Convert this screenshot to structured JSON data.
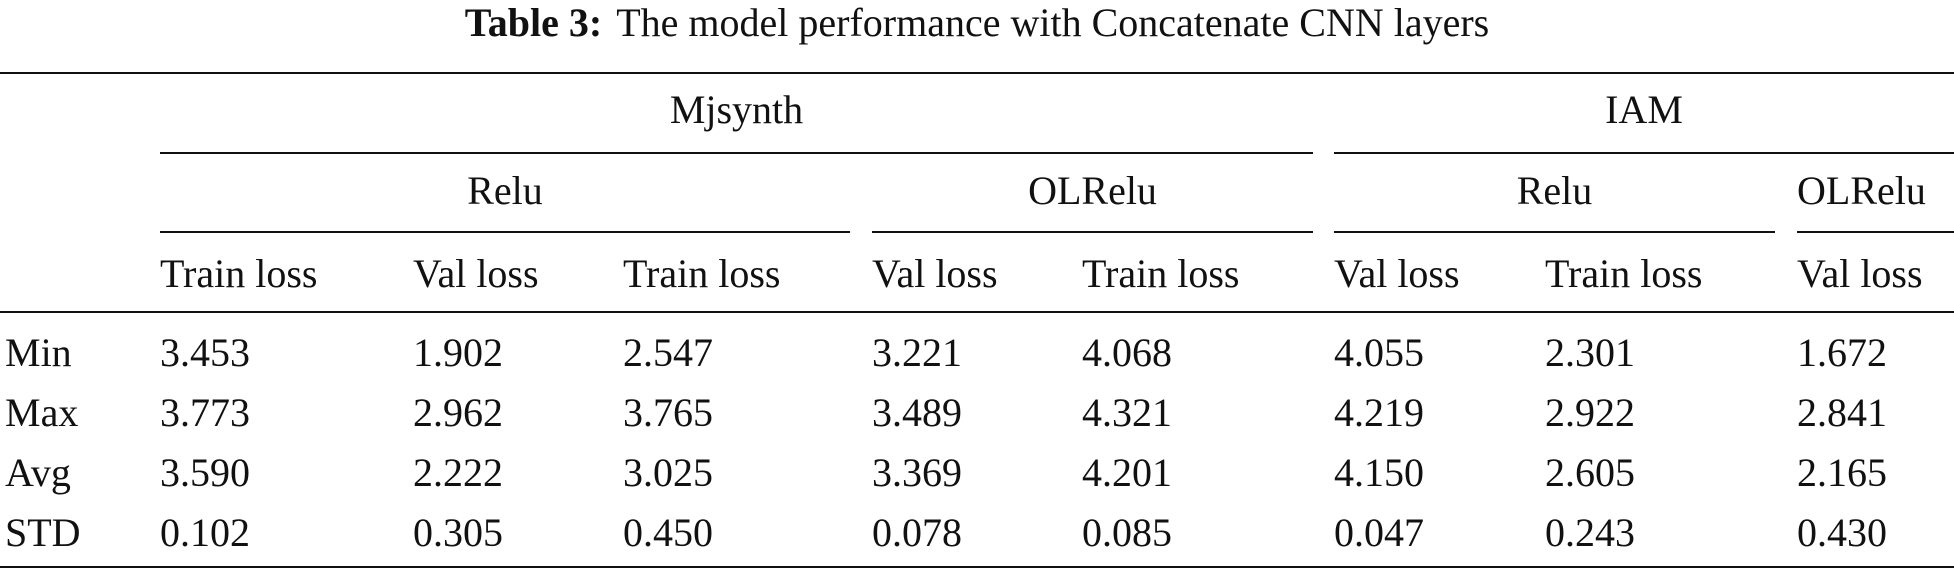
{
  "caption": {
    "label": "Table 3:",
    "text": "The model performance with Concatenate CNN layers"
  },
  "table": {
    "datasets": [
      {
        "name": "Mjsynth",
        "activations": [
          "Relu",
          "OLRelu"
        ]
      },
      {
        "name": "IAM",
        "activations": [
          "Relu",
          "OLRelu"
        ]
      }
    ],
    "metric_headers": [
      "Train loss",
      "Val loss",
      "Train loss",
      "Val loss",
      "Train loss",
      "Val loss",
      "Train loss",
      "Val loss"
    ],
    "rows": [
      {
        "label": "Min",
        "values": [
          "3.453",
          "1.902",
          "2.547",
          "3.221",
          "4.068",
          "4.055",
          "2.301",
          "1.672"
        ]
      },
      {
        "label": "Max",
        "values": [
          "3.773",
          "2.962",
          "3.765",
          "3.489",
          "4.321",
          "4.219",
          "2.922",
          "2.841"
        ]
      },
      {
        "label": "Avg",
        "values": [
          "3.590",
          "2.222",
          "3.025",
          "3.369",
          "4.201",
          "4.150",
          "2.605",
          "2.165"
        ]
      },
      {
        "label": "STD",
        "values": [
          "0.102",
          "0.305",
          "0.450",
          "0.078",
          "0.085",
          "0.047",
          "0.243",
          "0.430"
        ]
      }
    ]
  }
}
